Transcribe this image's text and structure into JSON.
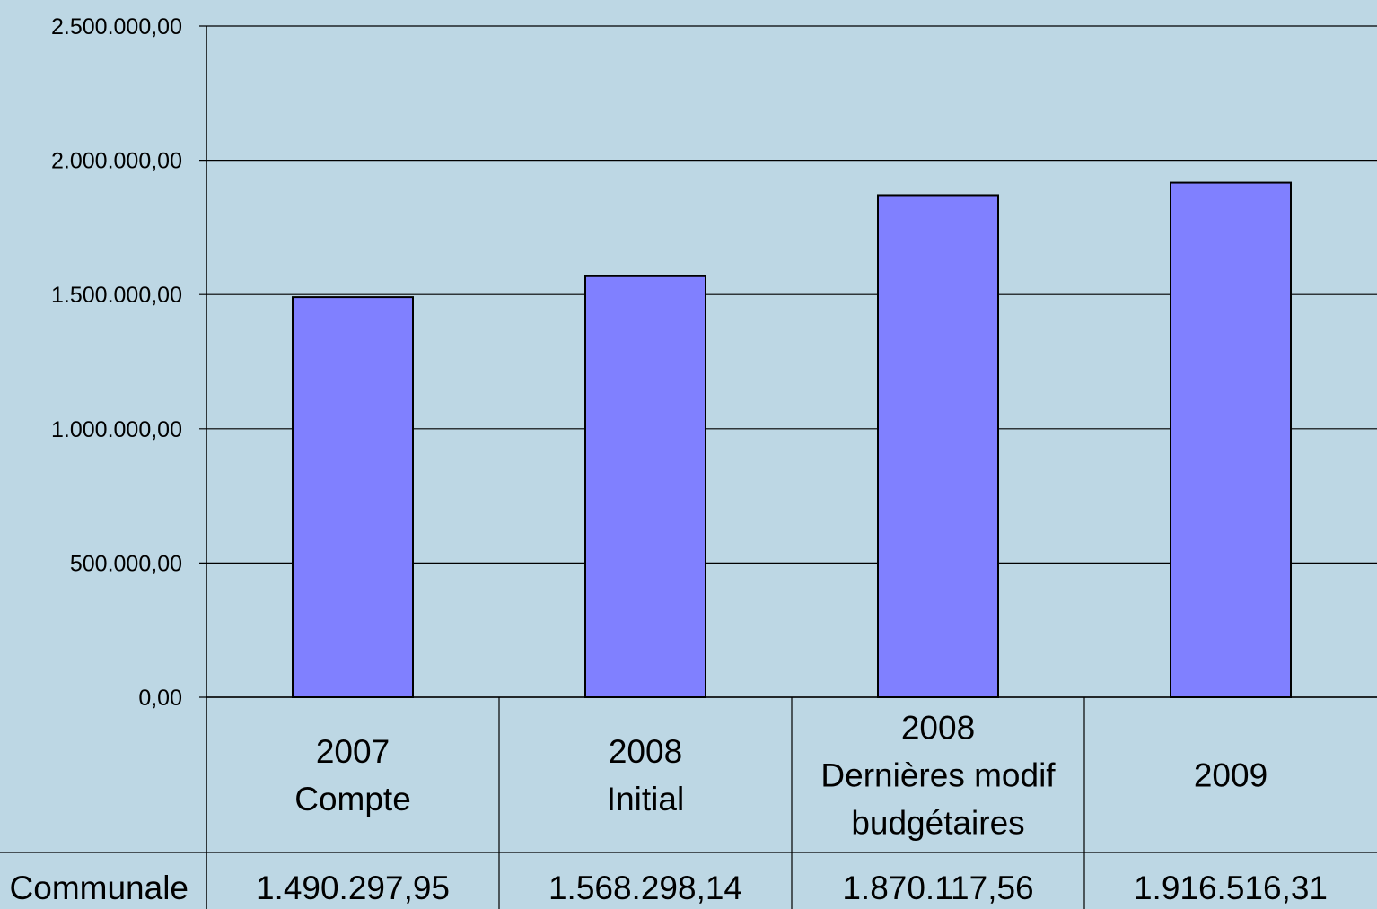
{
  "chart_data": {
    "type": "bar",
    "categories": [
      [
        "2007",
        "Compte"
      ],
      [
        "2008",
        "Initial"
      ],
      [
        "2008",
        "Dernières modif",
        "budgétaires"
      ],
      [
        "2009"
      ]
    ],
    "series": [
      {
        "name": "Communale",
        "values": [
          1490297.95,
          1568298.14,
          1870117.56,
          1916516.31
        ],
        "value_labels": [
          "1.490.297,95",
          "1.568.298,14",
          "1.870.117,56",
          "1.916.516,31"
        ]
      }
    ],
    "y_ticks": [
      "0,00",
      "500.000,00",
      "1.000.000,00",
      "1.500.000,00",
      "2.000.000,00",
      "2.500.000,00"
    ],
    "ylim": [
      0,
      2500000
    ],
    "grid": true,
    "data_table": true,
    "colors": {
      "bar": "#8080ff",
      "background": "#bdd7e4",
      "lines": "#000000"
    }
  }
}
